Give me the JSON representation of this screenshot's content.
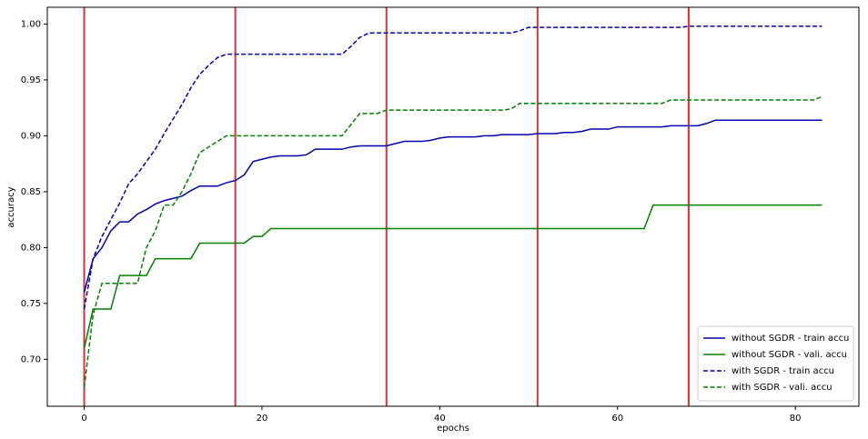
{
  "chart_data": {
    "type": "line",
    "xlabel": "epochs",
    "ylabel": "accuracy",
    "x": [
      0,
      1,
      2,
      3,
      4,
      5,
      6,
      7,
      8,
      9,
      10,
      11,
      12,
      13,
      14,
      15,
      16,
      17,
      18,
      19,
      20,
      21,
      22,
      23,
      24,
      25,
      26,
      27,
      28,
      29,
      30,
      31,
      32,
      33,
      34,
      35,
      36,
      37,
      38,
      39,
      40,
      41,
      42,
      43,
      44,
      45,
      46,
      47,
      48,
      49,
      50,
      51,
      52,
      53,
      54,
      55,
      56,
      57,
      58,
      59,
      60,
      61,
      62,
      63,
      64,
      65,
      66,
      67,
      68,
      69,
      70,
      71,
      72,
      73,
      74,
      75,
      76,
      77,
      78,
      79,
      80,
      81,
      82,
      83
    ],
    "series": [
      {
        "name": "without SGDR - train accu",
        "color": "#0000b0",
        "dash": "solid",
        "values": [
          0.76,
          0.79,
          0.8,
          0.815,
          0.823,
          0.823,
          0.83,
          0.834,
          0.839,
          0.842,
          0.844,
          0.846,
          0.851,
          0.855,
          0.855,
          0.855,
          0.858,
          0.86,
          0.865,
          0.877,
          0.879,
          0.881,
          0.882,
          0.882,
          0.882,
          0.883,
          0.888,
          0.888,
          0.888,
          0.888,
          0.89,
          0.891,
          0.891,
          0.891,
          0.891,
          0.893,
          0.895,
          0.895,
          0.895,
          0.896,
          0.898,
          0.899,
          0.899,
          0.899,
          0.899,
          0.9,
          0.9,
          0.901,
          0.901,
          0.901,
          0.901,
          0.902,
          0.902,
          0.902,
          0.903,
          0.903,
          0.904,
          0.906,
          0.906,
          0.906,
          0.908,
          0.908,
          0.908,
          0.908,
          0.908,
          0.908,
          0.909,
          0.909,
          0.909,
          0.909,
          0.911,
          0.914,
          0.914,
          0.914,
          0.914,
          0.914,
          0.914,
          0.914,
          0.914,
          0.914,
          0.914,
          0.914,
          0.914,
          0.914
        ]
      },
      {
        "name": "without SGDR - vali. accu",
        "color": "#008000",
        "dash": "solid",
        "values": [
          0.71,
          0.745,
          0.745,
          0.745,
          0.775,
          0.775,
          0.775,
          0.775,
          0.79,
          0.79,
          0.79,
          0.79,
          0.79,
          0.804,
          0.804,
          0.804,
          0.804,
          0.804,
          0.804,
          0.81,
          0.81,
          0.817,
          0.817,
          0.817,
          0.817,
          0.817,
          0.817,
          0.817,
          0.817,
          0.817,
          0.817,
          0.817,
          0.817,
          0.817,
          0.817,
          0.817,
          0.817,
          0.817,
          0.817,
          0.817,
          0.817,
          0.817,
          0.817,
          0.817,
          0.817,
          0.817,
          0.817,
          0.817,
          0.817,
          0.817,
          0.817,
          0.817,
          0.817,
          0.817,
          0.817,
          0.817,
          0.817,
          0.817,
          0.817,
          0.817,
          0.817,
          0.817,
          0.817,
          0.817,
          0.838,
          0.838,
          0.838,
          0.838,
          0.838,
          0.838,
          0.838,
          0.838,
          0.838,
          0.838,
          0.838,
          0.838,
          0.838,
          0.838,
          0.838,
          0.838,
          0.838,
          0.838,
          0.838,
          0.838
        ]
      },
      {
        "name": "with SGDR - train accu",
        "color": "#0000b0",
        "dash": "dashed",
        "values": [
          0.745,
          0.79,
          0.81,
          0.825,
          0.84,
          0.857,
          0.866,
          0.877,
          0.888,
          0.902,
          0.915,
          0.928,
          0.943,
          0.955,
          0.963,
          0.97,
          0.973,
          0.973,
          0.973,
          0.973,
          0.973,
          0.973,
          0.973,
          0.973,
          0.973,
          0.973,
          0.973,
          0.973,
          0.973,
          0.973,
          0.98,
          0.988,
          0.992,
          0.992,
          0.992,
          0.992,
          0.992,
          0.992,
          0.992,
          0.992,
          0.992,
          0.992,
          0.992,
          0.992,
          0.992,
          0.992,
          0.992,
          0.992,
          0.992,
          0.994,
          0.997,
          0.997,
          0.997,
          0.997,
          0.997,
          0.997,
          0.997,
          0.997,
          0.997,
          0.997,
          0.997,
          0.997,
          0.997,
          0.997,
          0.997,
          0.997,
          0.997,
          0.997,
          0.998,
          0.998,
          0.998,
          0.998,
          0.998,
          0.998,
          0.998,
          0.998,
          0.998,
          0.998,
          0.998,
          0.998,
          0.998,
          0.998,
          0.998,
          0.998
        ]
      },
      {
        "name": "with SGDR - vali. accu",
        "color": "#008000",
        "dash": "dashed",
        "values": [
          0.675,
          0.74,
          0.768,
          0.768,
          0.768,
          0.768,
          0.768,
          0.8,
          0.815,
          0.838,
          0.838,
          0.85,
          0.866,
          0.885,
          0.89,
          0.895,
          0.9,
          0.9,
          0.9,
          0.9,
          0.9,
          0.9,
          0.9,
          0.9,
          0.9,
          0.9,
          0.9,
          0.9,
          0.9,
          0.9,
          0.91,
          0.92,
          0.92,
          0.92,
          0.923,
          0.923,
          0.923,
          0.923,
          0.923,
          0.923,
          0.923,
          0.923,
          0.923,
          0.923,
          0.923,
          0.923,
          0.923,
          0.923,
          0.924,
          0.929,
          0.929,
          0.929,
          0.929,
          0.929,
          0.929,
          0.929,
          0.929,
          0.929,
          0.929,
          0.929,
          0.929,
          0.929,
          0.929,
          0.929,
          0.929,
          0.929,
          0.932,
          0.932,
          0.932,
          0.932,
          0.932,
          0.932,
          0.932,
          0.932,
          0.932,
          0.932,
          0.932,
          0.932,
          0.932,
          0.932,
          0.932,
          0.932,
          0.932,
          0.935
        ]
      }
    ],
    "vlines": [
      0,
      17,
      34,
      51,
      68
    ],
    "vline_color": "#e03030",
    "xlim": [
      -4.15,
      87.15
    ],
    "ylim": [
      0.658,
      1.015
    ],
    "xticks": [
      0,
      20,
      40,
      60,
      80
    ],
    "yticks": [
      {
        "value": 0.7,
        "label": "0.70"
      },
      0.75,
      {
        "value": 0.8,
        "label": "0.80"
      },
      0.85,
      {
        "value": 0.9,
        "label": "0.90"
      },
      0.95,
      {
        "value": 1.0,
        "label": "1.00"
      }
    ],
    "grid": false,
    "legend": "lower right"
  }
}
